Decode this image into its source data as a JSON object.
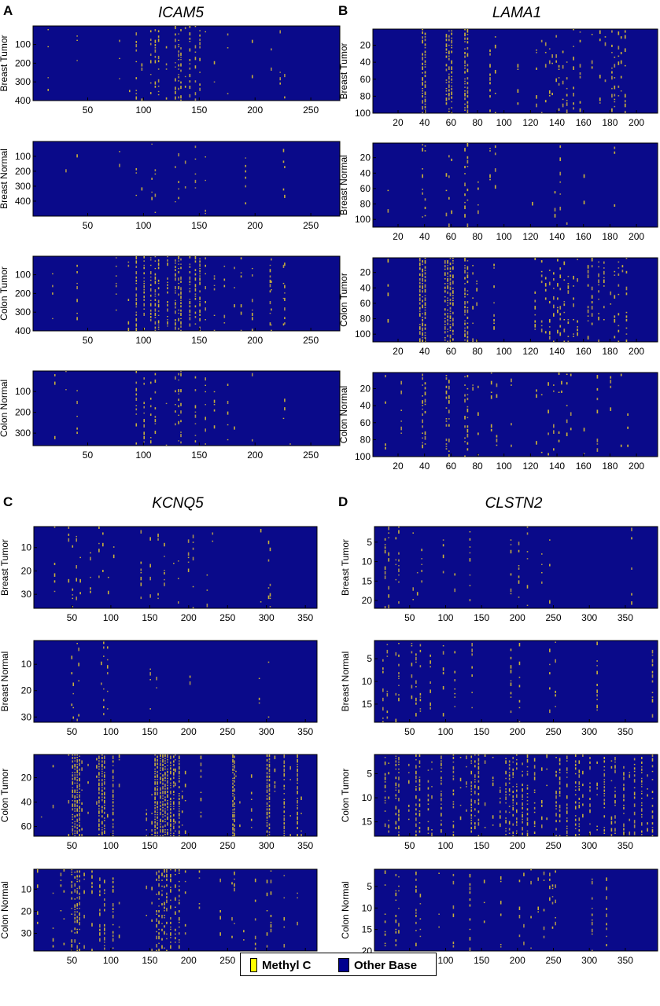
{
  "legend": {
    "items": [
      {
        "label": "Methyl C",
        "color": "#ffff00"
      },
      {
        "label": "Other Base",
        "color": "#00008f"
      }
    ]
  },
  "colors": {
    "background": "#0a0a8a",
    "methyl_bar": "#c8b03a",
    "methyl_bar_dark": "#a89050"
  },
  "chart_data": [
    {
      "panel": "A",
      "gene": "ICAM5",
      "type": "heatmap",
      "xlim": [
        1,
        276
      ],
      "x_ticks": [
        50,
        100,
        150,
        200,
        250
      ],
      "subplots": [
        {
          "ylabel": "Breast Tumor",
          "ylim": [
            1,
            400
          ],
          "y_ticks": [
            100,
            200,
            300,
            400
          ],
          "hot_columns": [
            93,
            106,
            110,
            113,
            128,
            131,
            133,
            141,
            146,
            150
          ],
          "sparse_columns": [
            14,
            40,
            78,
            87,
            98,
            100,
            120,
            137,
            155,
            163,
            175,
            197,
            214,
            222,
            226
          ],
          "density": 0.22,
          "sparse_density": 0.03
        },
        {
          "ylabel": "Breast Normal",
          "ylim": [
            1,
            500
          ],
          "y_ticks": [
            100,
            200,
            300,
            400
          ],
          "hot_columns": [
            93,
            107,
            110,
            128,
            131,
            146
          ],
          "sparse_columns": [
            30,
            40,
            78,
            98,
            100,
            120,
            137,
            155,
            178,
            191,
            197,
            225,
            226
          ],
          "density": 0.07,
          "sparse_density": 0.025
        },
        {
          "ylabel": "Colon Tumor",
          "ylim": [
            1,
            400
          ],
          "y_ticks": [
            100,
            200,
            300,
            400
          ],
          "hot_columns": [
            93,
            100,
            106,
            110,
            113,
            121,
            128,
            131,
            133,
            141,
            146,
            150
          ],
          "sparse_columns": [
            18,
            40,
            75,
            86,
            155,
            163,
            172,
            181,
            187,
            197,
            213,
            214,
            225,
            226
          ],
          "density": 0.38,
          "sparse_density": 0.08
        },
        {
          "ylabel": "Colon Normal",
          "ylim": [
            1,
            360
          ],
          "y_ticks": [
            100,
            200,
            300
          ],
          "hot_columns": [
            93,
            100,
            106,
            110,
            128,
            131,
            133,
            146
          ],
          "sparse_columns": [
            20,
            30,
            40,
            80,
            120,
            137,
            155,
            163,
            175,
            181,
            197,
            225,
            226,
            231
          ],
          "density": 0.14,
          "sparse_density": 0.035
        }
      ]
    },
    {
      "panel": "B",
      "gene": "LAMA1",
      "type": "heatmap",
      "xlim": [
        1,
        216
      ],
      "x_ticks": [
        20,
        40,
        60,
        80,
        100,
        120,
        140,
        160,
        180,
        200
      ],
      "subplots": [
        {
          "ylabel": "Breast Tumor",
          "ylim": [
            1,
            100
          ],
          "y_ticks": [
            20,
            40,
            60,
            80,
            100
          ],
          "hot_columns": [
            38,
            40,
            56,
            58,
            60,
            70,
            72
          ],
          "sparse_columns": [
            89,
            93,
            110,
            124,
            128,
            131,
            134,
            136,
            139,
            141,
            144,
            147,
            152,
            157,
            166,
            172,
            176,
            181,
            183,
            186,
            188,
            191
          ],
          "density": 0.42,
          "sparse_density": 0.09
        },
        {
          "ylabel": "Breast Normal",
          "ylim": [
            1,
            110
          ],
          "y_ticks": [
            20,
            40,
            60,
            80,
            100
          ],
          "hot_columns": [
            38,
            40,
            58,
            70,
            72
          ],
          "sparse_columns": [
            12,
            56,
            60,
            80,
            89,
            93,
            121,
            138,
            142,
            147,
            160,
            183,
            191
          ],
          "density": 0.12,
          "sparse_density": 0.03
        },
        {
          "ylabel": "Colon Tumor",
          "ylim": [
            1,
            110
          ],
          "y_ticks": [
            20,
            40,
            60,
            80,
            100
          ],
          "hot_columns": [
            36,
            38,
            40,
            55,
            57,
            59,
            61,
            70,
            72
          ],
          "sparse_columns": [
            12,
            76,
            79,
            92,
            123,
            128,
            131,
            134,
            137,
            140,
            142,
            145,
            148,
            152,
            155,
            163,
            166,
            171,
            175,
            180,
            183,
            186,
            189,
            192
          ],
          "density": 0.55,
          "sparse_density": 0.12
        },
        {
          "ylabel": "Colon Normal",
          "ylim": [
            1,
            100
          ],
          "y_ticks": [
            20,
            40,
            60,
            80,
            100
          ],
          "hot_columns": [
            38,
            40,
            56,
            58,
            70,
            72
          ],
          "sparse_columns": [
            10,
            22,
            76,
            80,
            90,
            94,
            105,
            124,
            128,
            133,
            137,
            141,
            143,
            147,
            150,
            160,
            170,
            180,
            188,
            193
          ],
          "density": 0.22,
          "sparse_density": 0.05
        }
      ]
    },
    {
      "panel": "C",
      "gene": "KCNQ5",
      "type": "heatmap",
      "xlim": [
        1,
        365
      ],
      "x_ticks": [
        50,
        100,
        150,
        200,
        250,
        300,
        350
      ],
      "subplots": [
        {
          "ylabel": "Breast Tumor",
          "ylim": [
            1,
            36
          ],
          "y_ticks": [
            10,
            20,
            30
          ],
          "hot_columns": [],
          "sparse_columns": [
            27,
            45,
            50,
            55,
            60,
            73,
            84,
            89,
            96,
            103,
            138,
            150,
            160,
            168,
            180,
            186,
            199,
            205,
            223,
            230,
            292,
            302,
            304
          ],
          "density": 0,
          "sparse_density": 0.06
        },
        {
          "ylabel": "Breast Normal",
          "ylim": [
            1,
            32
          ],
          "y_ticks": [
            10,
            20,
            30
          ],
          "hot_columns": [],
          "sparse_columns": [
            49,
            51,
            56,
            58,
            87,
            90,
            95,
            150,
            158,
            201,
            290,
            302
          ],
          "density": 0,
          "sparse_density": 0.06
        },
        {
          "ylabel": "Colon Tumor",
          "ylim": [
            1,
            68
          ],
          "y_ticks": [
            20,
            40,
            60
          ],
          "hot_columns": [
            50,
            53,
            56,
            59,
            84,
            88,
            91,
            102,
            156,
            159,
            163,
            166,
            169,
            172,
            176,
            180,
            187,
            256,
            258,
            300,
            303,
            322,
            339
          ],
          "sparse_columns": [
            10,
            25,
            45,
            62,
            70,
            81,
            95,
            110,
            145,
            152,
            182,
            191,
            195,
            215,
            260,
            265,
            280,
            310,
            330,
            344
          ],
          "density": 0.7,
          "sparse_density": 0.05
        },
        {
          "ylabel": "Colon Normal",
          "ylim": [
            1,
            38
          ],
          "y_ticks": [
            10,
            20,
            30
          ],
          "hot_columns": [
            49,
            53,
            56,
            59,
            85,
            91,
            102,
            158,
            161,
            165,
            168,
            171,
            176,
            182,
            187
          ],
          "sparse_columns": [
            5,
            25,
            35,
            39,
            65,
            75,
            110,
            145,
            152,
            195,
            213,
            240,
            255,
            258,
            270,
            285,
            300,
            305,
            322,
            339
          ],
          "density": 0.3,
          "sparse_density": 0.06
        }
      ]
    },
    {
      "panel": "D",
      "gene": "CLSTN2",
      "type": "heatmap",
      "xlim": [
        1,
        395
      ],
      "x_ticks": [
        50,
        100,
        150,
        200,
        250,
        300,
        350
      ],
      "subplots": [
        {
          "ylabel": "Breast Tumor",
          "ylim": [
            1,
            22
          ],
          "y_ticks": [
            5,
            10,
            15,
            20
          ],
          "hot_columns": [],
          "sparse_columns": [
            15,
            20,
            30,
            34,
            54,
            60,
            66,
            96,
            112,
            133,
            190,
            201,
            213,
            233,
            244,
            358
          ],
          "density": 0,
          "sparse_density": 0.08
        },
        {
          "ylabel": "Breast Normal",
          "ylim": [
            1,
            19
          ],
          "y_ticks": [
            5,
            10,
            15
          ],
          "hot_columns": [],
          "sparse_columns": [
            12,
            18,
            30,
            34,
            52,
            58,
            64,
            78,
            96,
            112,
            136,
            190,
            202,
            244,
            252,
            310,
            387
          ],
          "density": 0,
          "sparse_density": 0.12
        },
        {
          "ylabel": "Colon Tumor",
          "ylim": [
            1,
            18
          ],
          "y_ticks": [
            5,
            10,
            15
          ],
          "hot_columns": [
            15,
            30,
            34,
            58,
            63,
            93,
            110,
            135,
            140,
            145,
            183,
            188,
            193,
            198,
            206,
            213,
            253,
            258,
            268,
            280,
            285,
            300,
            320,
            335,
            347,
            362,
            372,
            387
          ],
          "sparse_columns": [
            20,
            48,
            75,
            80,
            120,
            128,
            154,
            165,
            175,
            223,
            233,
            240,
            290,
            310,
            330,
            355,
            380
          ],
          "density": 0.35,
          "sparse_density": 0.1
        },
        {
          "ylabel": "Colon Normal",
          "ylim": [
            1,
            20
          ],
          "y_ticks": [
            5,
            10,
            15,
            20
          ],
          "hot_columns": [],
          "sparse_columns": [
            15,
            30,
            34,
            58,
            64,
            90,
            110,
            133,
            153,
            176,
            202,
            208,
            218,
            228,
            236,
            244,
            248,
            252,
            303,
            323
          ],
          "density": 0,
          "sparse_density": 0.1
        }
      ]
    }
  ]
}
